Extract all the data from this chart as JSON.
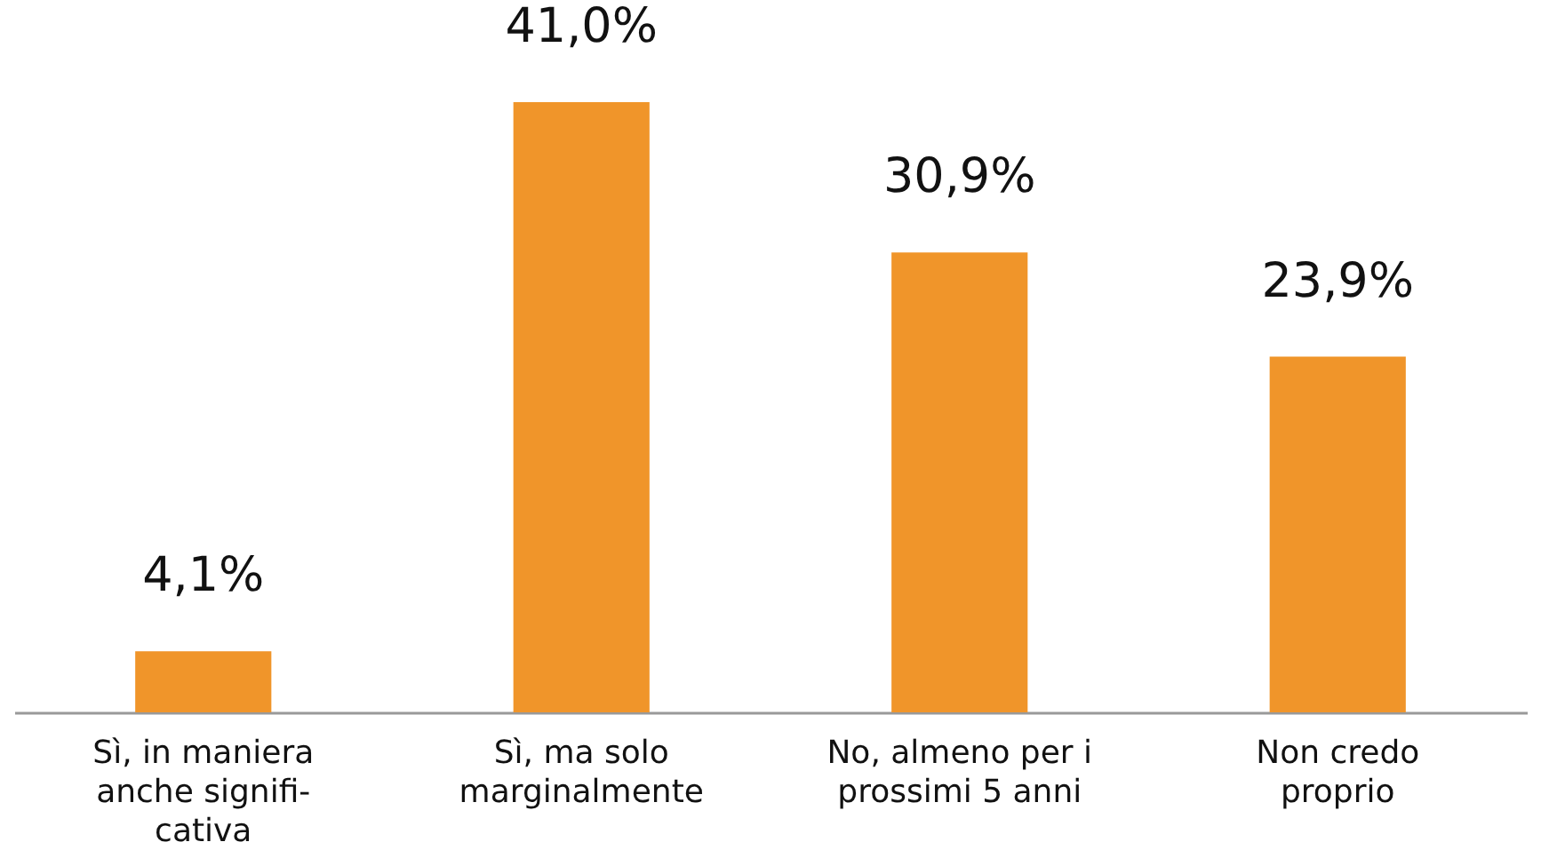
{
  "chart_data": {
    "type": "bar",
    "categories": [
      "Sì, in maniera\nanche signifi-\ncativa",
      "Sì, ma solo\nmarginalmente",
      "No, almeno per i\nprossimi 5 anni",
      "Non credo\nproprio"
    ],
    "values": [
      4.1,
      41.0,
      30.9,
      23.9
    ],
    "value_labels": [
      "4,1%",
      "41,0%",
      "30,9%",
      "23,9%"
    ],
    "color": "#f0952a",
    "grid": false,
    "tick_labels": "x"
  }
}
